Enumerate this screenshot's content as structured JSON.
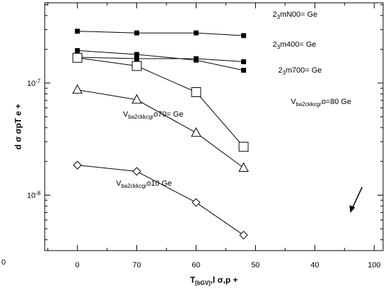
{
  "chart_data": {
    "type": "line",
    "xlabel_main": "T",
    "xlabel_sub": "[bGV]",
    "xlabel_rest": ",l      σ,p    +",
    "ylabel": "d σ σpT e +",
    "corner_label": "0",
    "x_ticks": [
      {
        "value": 0,
        "label": "0"
      },
      {
        "value": 1,
        "label": "70"
      },
      {
        "value": 2,
        "label": "60"
      },
      {
        "value": 3,
        "label": "50"
      },
      {
        "value": 4,
        "label": "40"
      },
      {
        "value": 5,
        "label": "100"
      }
    ],
    "y_ticks": [
      {
        "value": 1e-07,
        "mantissa": "10",
        "exponent": "-7"
      },
      {
        "value": 1e-08,
        "mantissa": "10",
        "exponent": "-8"
      }
    ],
    "xlim": [
      -0.55,
      5.15
    ],
    "ylim": [
      3.2e-09,
      5.2e-07
    ],
    "yscale": "log",
    "x": [
      0,
      1,
      2,
      2.8
    ],
    "series": [
      {
        "marker": "filled-square",
        "values": [
          2.9e-07,
          2.8e-07,
          2.8e-07,
          2.65e-07
        ]
      },
      {
        "marker": "filled-square",
        "values": [
          1.95e-07,
          1.8e-07,
          1.6e-07,
          1.3e-07
        ]
      },
      {
        "marker": "filled-square",
        "values": [
          1.7e-07,
          1.65e-07,
          1.65e-07,
          1.55e-07
        ]
      },
      {
        "marker": "open-square",
        "values": [
          1.68e-07,
          1.42e-07,
          8.3e-08,
          2.7e-08
        ]
      },
      {
        "marker": "open-triangle",
        "values": [
          8.7e-08,
          7.1e-08,
          3.6e-08,
          1.75e-08
        ]
      },
      {
        "marker": "open-diamond",
        "values": [
          1.85e-08,
          1.63e-08,
          8.6e-09,
          4.4e-09
        ]
      }
    ],
    "annotations": [
      {
        "id": "n00",
        "pre": "2",
        "sub": "3",
        "post": "mN00= Ge"
      },
      {
        "id": "m400",
        "pre": "2",
        "sub": "3",
        "post": "m400= Ge"
      },
      {
        "id": "m700",
        "pre": "2",
        "sub": "3",
        "post": "m700= Ge"
      },
      {
        "id": "v80",
        "pre": "V",
        "sub": "ba2ckkcgr",
        "post": "o=80 Ge"
      },
      {
        "id": "v70",
        "pre": "V",
        "sub": "ba2ckkcgr",
        "post": "o70= Ge"
      },
      {
        "id": "v10",
        "pre": "V",
        "sub": "ba2ckkcgr",
        "post": "o10 Ge"
      }
    ]
  }
}
